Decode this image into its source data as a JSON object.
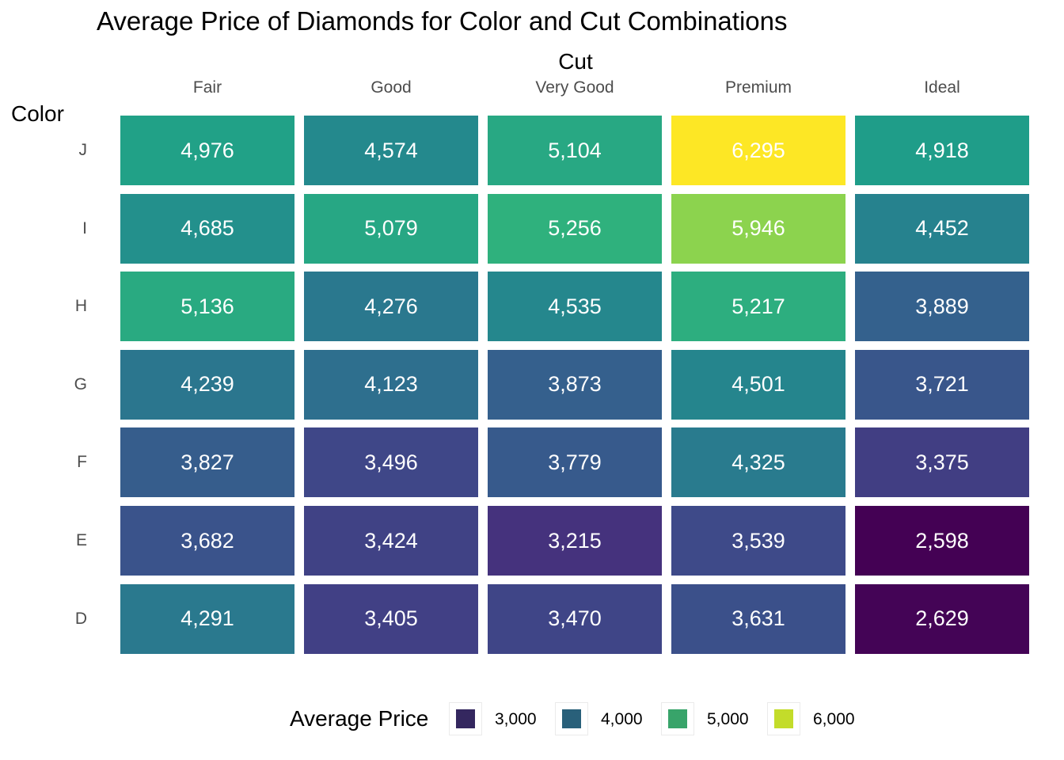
{
  "chart_data": {
    "type": "heatmap",
    "title": "Average Price of Diamonds for Color and Cut Combinations",
    "xlabel": "Cut",
    "ylabel": "Color",
    "x_categories": [
      "Fair",
      "Good",
      "Very Good",
      "Premium",
      "Ideal"
    ],
    "y_categories": [
      "J",
      "I",
      "H",
      "G",
      "F",
      "E",
      "D"
    ],
    "values": [
      [
        4976,
        4574,
        5104,
        6295,
        4918
      ],
      [
        4685,
        5079,
        5256,
        5946,
        4452
      ],
      [
        5136,
        4276,
        4535,
        5217,
        3889
      ],
      [
        4239,
        4123,
        3873,
        4501,
        3721
      ],
      [
        3827,
        3496,
        3779,
        4325,
        3375
      ],
      [
        3682,
        3424,
        3215,
        3539,
        2598
      ],
      [
        4291,
        3405,
        3470,
        3631,
        2629
      ]
    ],
    "color_scale": "viridis",
    "legend": {
      "title": "Average Price",
      "placement": "bottom",
      "keys": [
        {
          "label": "3,000",
          "color": "#34275f"
        },
        {
          "label": "4,000",
          "color": "#29607a"
        },
        {
          "label": "5,000",
          "color": "#38a46a"
        },
        {
          "label": "6,000",
          "color": "#c3dc2a"
        }
      ]
    },
    "grid": false
  }
}
